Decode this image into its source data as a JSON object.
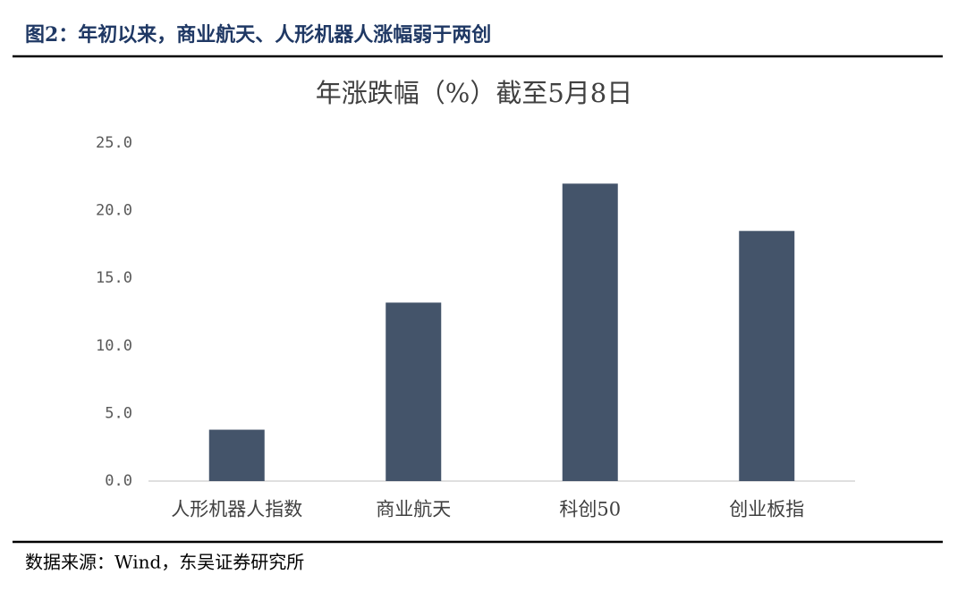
{
  "header": {
    "title": "图2：年初以来，商业航天、人形机器人涨幅弱于两创"
  },
  "chart_data": {
    "type": "bar",
    "title": "年涨跌幅（%）截至5月8日",
    "categories": [
      "人形机器人指数",
      "商业航天",
      "科创50",
      "创业板指"
    ],
    "values": [
      3.8,
      13.2,
      22.0,
      18.5
    ],
    "color": "#44546a",
    "ylim": [
      0,
      25
    ],
    "yticks": [
      {
        "value": 0,
        "label": "0.0"
      },
      {
        "value": 5,
        "label": "5.0"
      },
      {
        "value": 10,
        "label": "10.0"
      },
      {
        "value": 15,
        "label": "15.0"
      },
      {
        "value": 20,
        "label": "20.0"
      },
      {
        "value": 25,
        "label": "25.0"
      }
    ],
    "grid": false
  },
  "footer": {
    "source": "数据来源：Wind，东吴证券研究所"
  }
}
